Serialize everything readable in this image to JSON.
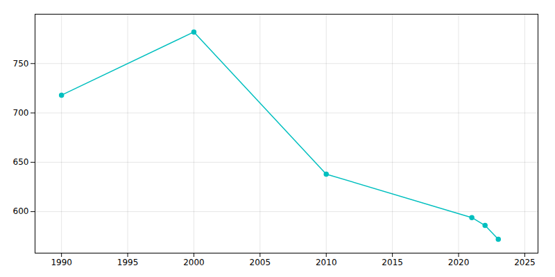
{
  "chart_data": {
    "type": "line",
    "x": [
      1990,
      2000,
      2010,
      2021,
      2022,
      2023
    ],
    "values": [
      718,
      782,
      638,
      594,
      586,
      572
    ],
    "color": "#00BFBF",
    "marker": "o",
    "xlim": [
      1988,
      2026
    ],
    "ylim": [
      558,
      800
    ],
    "xticks": [
      1990,
      1995,
      2000,
      2005,
      2010,
      2015,
      2020,
      2025
    ],
    "yticks": [
      600,
      650,
      700,
      750
    ],
    "grid": true
  }
}
